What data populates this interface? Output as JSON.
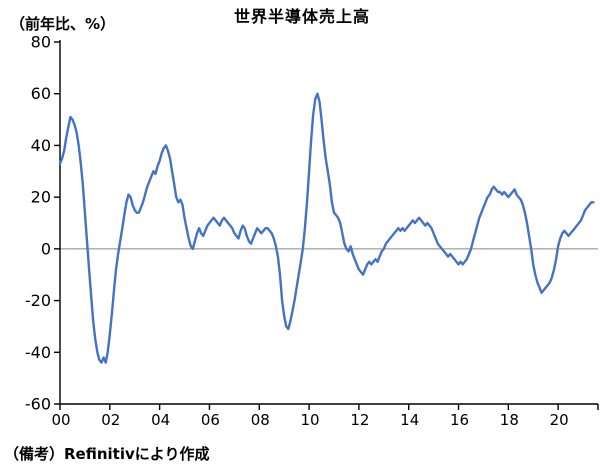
{
  "chart_data": {
    "type": "line",
    "title": "世界半導体売上高",
    "ylabel": "（前年比、%）",
    "note": "（備考）Refinitivにより作成",
    "x_start": 2000.0,
    "x_step_months": 1,
    "x_range": [
      2000,
      2021.6
    ],
    "ylim": [
      -60,
      80
    ],
    "yticks": [
      80,
      60,
      40,
      20,
      0,
      -20,
      -40,
      -60
    ],
    "xticks": [
      2000,
      2002,
      2004,
      2006,
      2008,
      2010,
      2012,
      2014,
      2016,
      2018,
      2020
    ],
    "xtick_labels": [
      "00",
      "02",
      "04",
      "06",
      "08",
      "10",
      "12",
      "14",
      "16",
      "18",
      "20"
    ],
    "grid": "zero-line-only",
    "legend": "none",
    "zero_line_color": "#888888",
    "axis_color": "#000000",
    "series": [
      {
        "color": "#4472C4",
        "values": [
          33,
          35,
          38,
          43,
          47,
          51,
          50,
          48,
          45,
          40,
          33,
          25,
          14,
          3,
          -8,
          -18,
          -28,
          -35,
          -40,
          -43,
          -44,
          -42,
          -44,
          -40,
          -33,
          -25,
          -16,
          -8,
          -2,
          3,
          8,
          13,
          18,
          21,
          20,
          17,
          15,
          14,
          14,
          16,
          18,
          21,
          24,
          26,
          28,
          30,
          29,
          32,
          34,
          37,
          39,
          40,
          38,
          35,
          30,
          25,
          20,
          18,
          19,
          17,
          12,
          8,
          4,
          1,
          0,
          3,
          6,
          8,
          6,
          5,
          7,
          9,
          10,
          11,
          12,
          11,
          10,
          9,
          11,
          12,
          11,
          10,
          9,
          8,
          6,
          5,
          4,
          7,
          9,
          8,
          5,
          3,
          2,
          4,
          6,
          8,
          7,
          6,
          7,
          8,
          8,
          7,
          6,
          4,
          1,
          -3,
          -10,
          -20,
          -26,
          -30,
          -31,
          -28,
          -24,
          -20,
          -15,
          -10,
          -5,
          0,
          8,
          18,
          30,
          42,
          52,
          58,
          60,
          57,
          50,
          42,
          35,
          30,
          25,
          18,
          14,
          13,
          12,
          10,
          6,
          2,
          0,
          -1,
          1,
          -2,
          -4,
          -6,
          -8,
          -9,
          -10,
          -8,
          -6,
          -5,
          -6,
          -5,
          -4,
          -5,
          -3,
          -1,
          0,
          2,
          3,
          4,
          5,
          6,
          7,
          8,
          7,
          8,
          7,
          8,
          9,
          10,
          11,
          10,
          11,
          12,
          11,
          10,
          9,
          10,
          9,
          8,
          6,
          4,
          2,
          1,
          0,
          -1,
          -2,
          -3,
          -2,
          -3,
          -4,
          -5,
          -6,
          -5,
          -6,
          -5,
          -4,
          -2,
          0,
          3,
          6,
          9,
          12,
          14,
          16,
          18,
          20,
          21,
          23,
          24,
          23,
          22,
          22,
          21,
          22,
          21,
          20,
          21,
          22,
          23,
          21,
          20,
          19,
          17,
          14,
          10,
          5,
          0,
          -6,
          -10,
          -13,
          -15,
          -17,
          -16,
          -15,
          -14,
          -13,
          -11,
          -8,
          -4,
          1,
          4,
          6,
          7,
          6,
          5,
          6,
          7,
          8,
          9,
          10,
          11,
          13,
          15,
          16,
          17,
          18,
          18
        ]
      }
    ]
  }
}
